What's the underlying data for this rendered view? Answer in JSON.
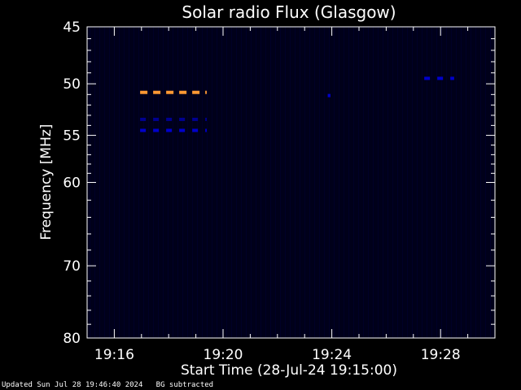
{
  "chart_data": {
    "type": "heatmap",
    "title": "Solar radio Flux (Glasgow)",
    "xlabel": "Start Time (28-Jul-24 19:15:00)",
    "ylabel": "Frequency [MHz]",
    "x_ticks": [
      "19:16",
      "19:20",
      "19:24",
      "19:28"
    ],
    "x_tick_minutes": [
      1,
      5,
      9,
      13
    ],
    "xlim_minutes": [
      0,
      15
    ],
    "y_ticks": [
      45,
      50,
      55,
      60,
      70,
      80
    ],
    "ylim": [
      45,
      80
    ],
    "y_scale": "log",
    "grid": false,
    "colors": {
      "background": "#000000",
      "field": "#00001a",
      "axes": "#ffffff",
      "high": "#ff9933",
      "mid": "#0000cc"
    },
    "features": [
      {
        "name": "",
        "t_start": 1.95,
        "t_end": 4.4,
        "freq": 50.8,
        "color": "#ff9933",
        "dashed": true
      },
      {
        "name": "",
        "t_start": 1.95,
        "t_end": 4.4,
        "freq": 53.4,
        "color": "#000090",
        "dashed": true
      },
      {
        "name": "",
        "t_start": 1.95,
        "t_end": 4.4,
        "freq": 54.5,
        "color": "#0000cc",
        "dashed": true
      },
      {
        "name": "",
        "t_start": 8.85,
        "t_end": 8.95,
        "freq": 51.1,
        "color": "#0000cc",
        "dashed": false
      },
      {
        "name": "",
        "t_start": 12.4,
        "t_end": 13.5,
        "freq": 49.5,
        "color": "#0000cc",
        "dashed": true
      }
    ]
  },
  "footer": {
    "updated": "Updated Sun Jul 28 19:46:40 2024",
    "note": "BG subtracted"
  }
}
